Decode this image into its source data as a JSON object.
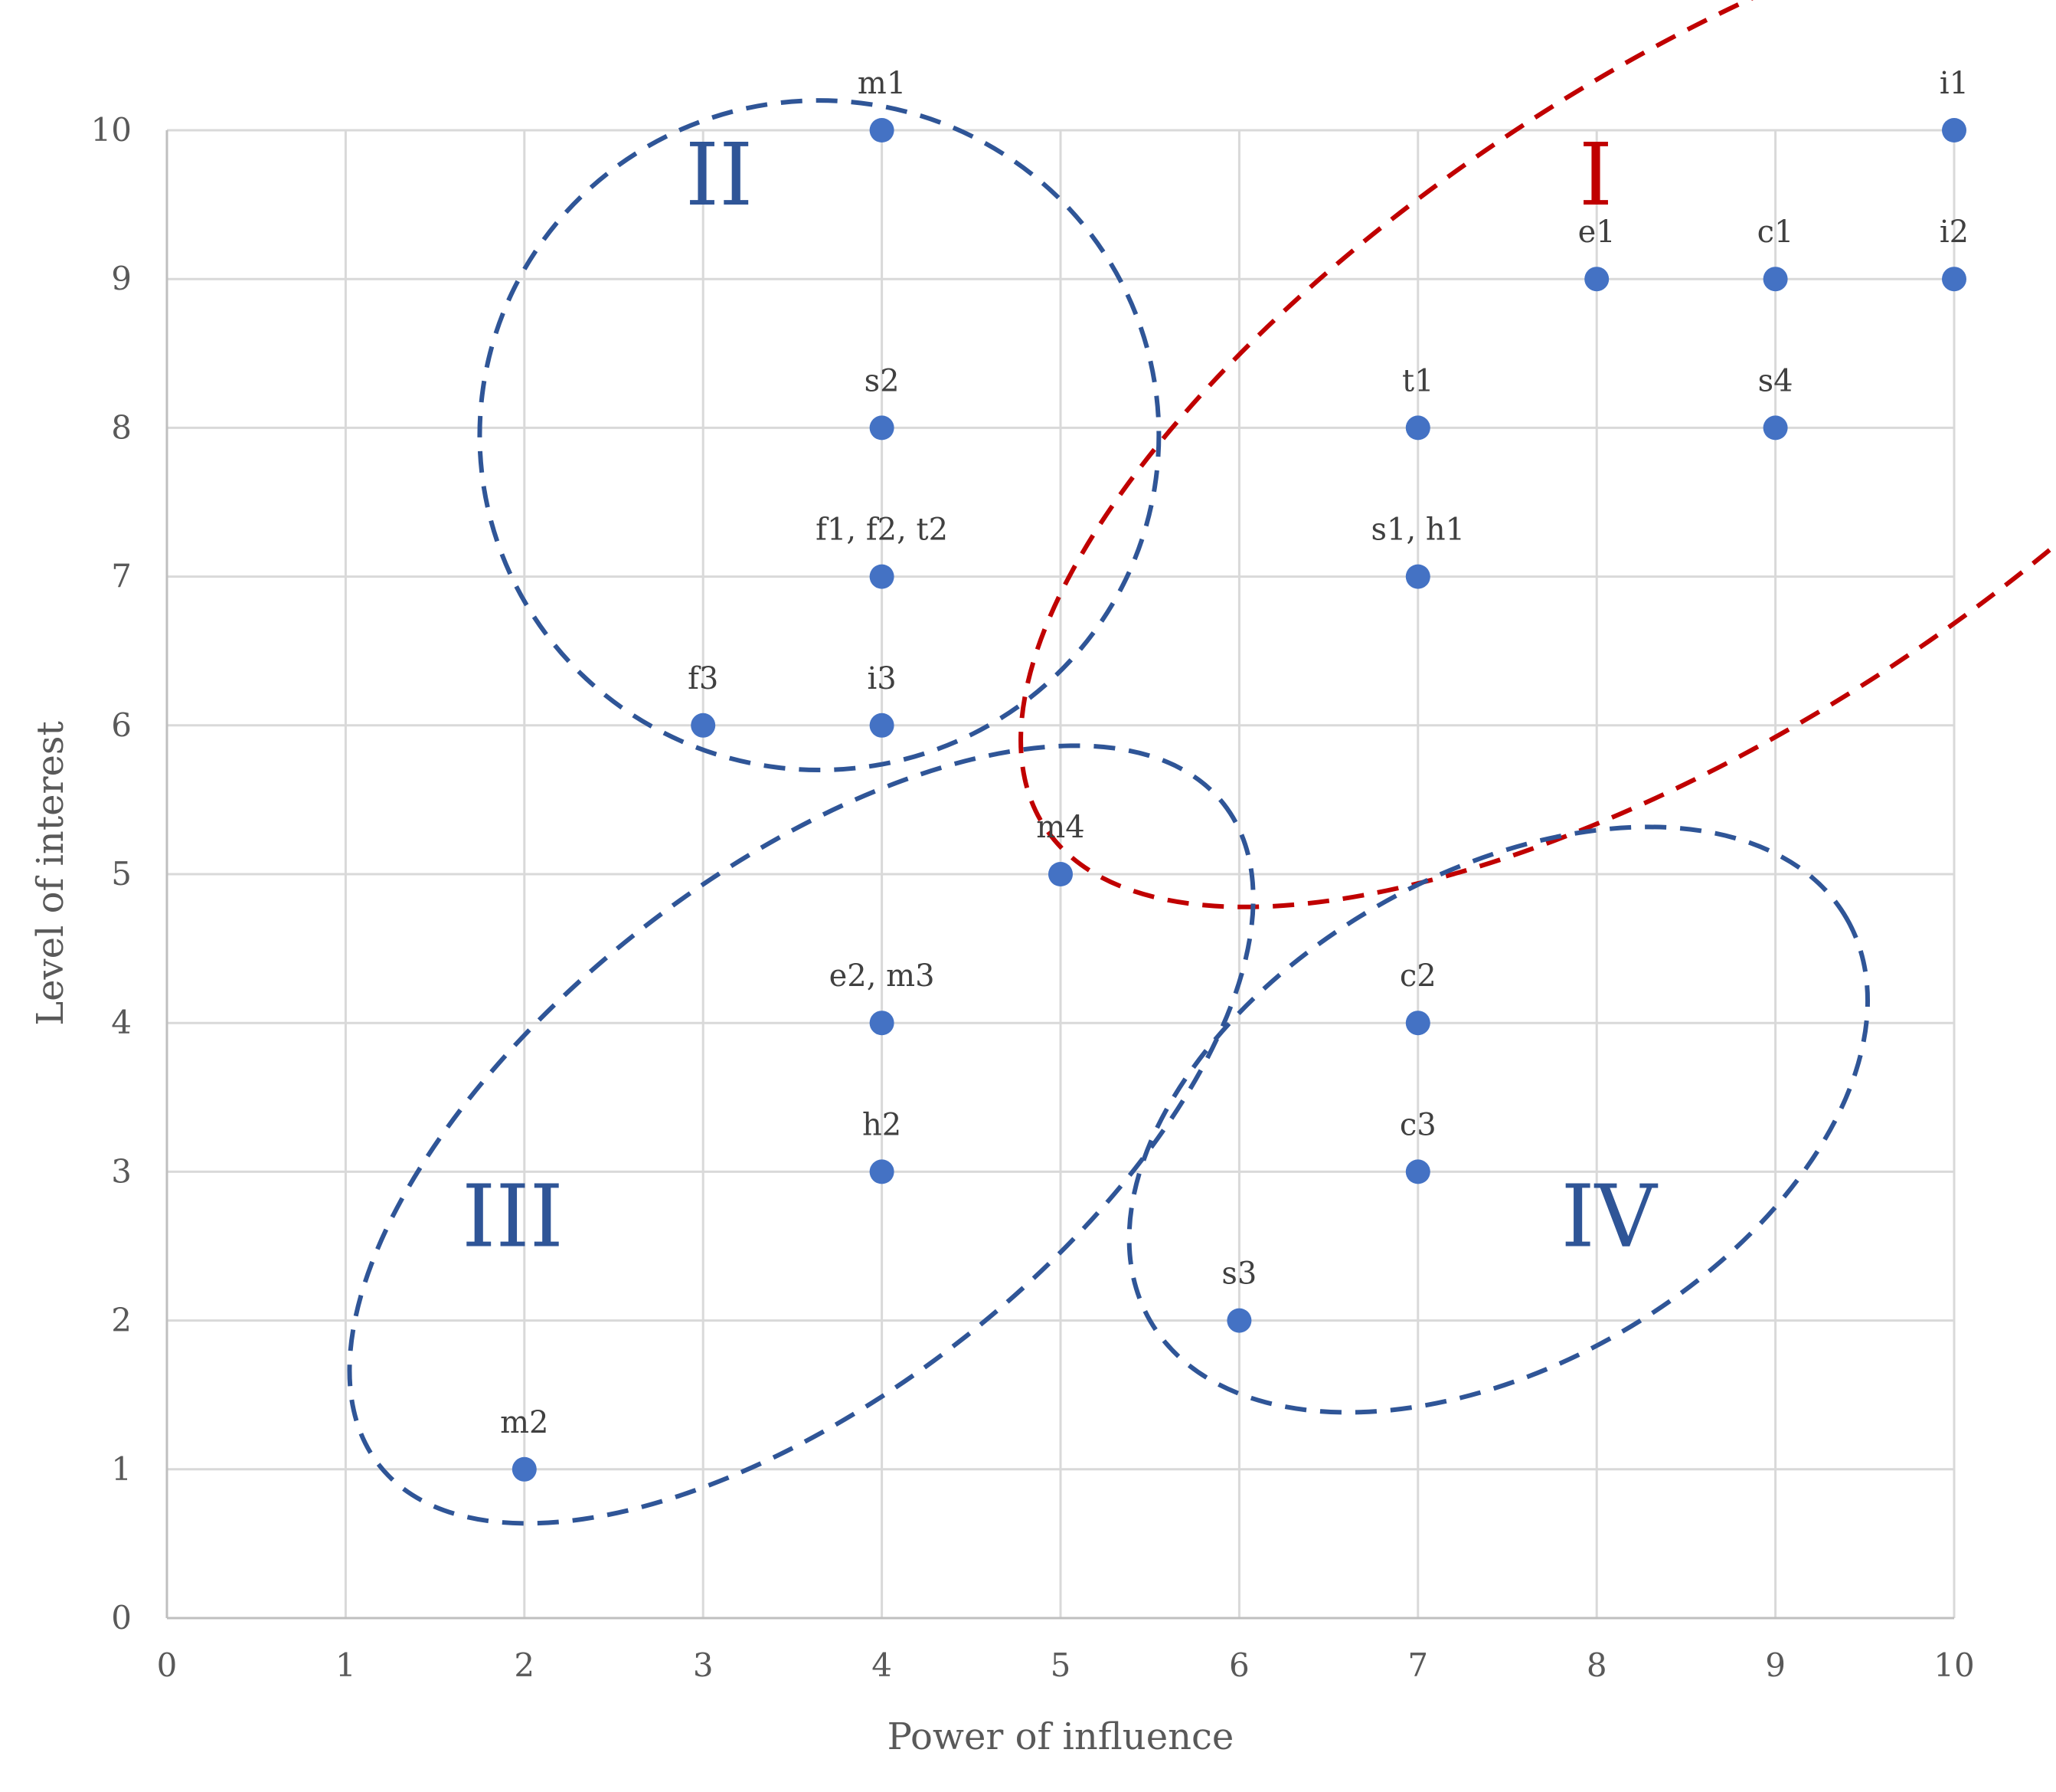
{
  "chart_data": {
    "type": "scatter",
    "xlabel": "Power of influence",
    "ylabel": "Level of interest",
    "xlim": [
      0,
      10
    ],
    "ylim": [
      0,
      10
    ],
    "xticks": [
      "0",
      "1",
      "2",
      "3",
      "4",
      "5",
      "6",
      "7",
      "8",
      "9",
      "10"
    ],
    "yticks": [
      "0",
      "1",
      "2",
      "3",
      "4",
      "5",
      "6",
      "7",
      "8",
      "9",
      "10"
    ],
    "grid": true,
    "point_color": "#4472c4",
    "points": [
      {
        "label": "m1",
        "x": 4,
        "y": 10
      },
      {
        "label": "s2",
        "x": 4,
        "y": 8
      },
      {
        "label": "f1, f2, t2",
        "x": 4,
        "y": 7
      },
      {
        "label": "f3",
        "x": 3,
        "y": 6
      },
      {
        "label": "i3",
        "x": 4,
        "y": 6
      },
      {
        "label": "i1",
        "x": 10,
        "y": 10
      },
      {
        "label": "e1",
        "x": 8,
        "y": 9
      },
      {
        "label": "c1",
        "x": 9,
        "y": 9
      },
      {
        "label": "i2",
        "x": 10,
        "y": 9
      },
      {
        "label": "t1",
        "x": 7,
        "y": 8
      },
      {
        "label": "s4",
        "x": 9,
        "y": 8
      },
      {
        "label": "s1, h1",
        "x": 7,
        "y": 7
      },
      {
        "label": "m4",
        "x": 5,
        "y": 5
      },
      {
        "label": "e2, m3",
        "x": 4,
        "y": 4
      },
      {
        "label": "h2",
        "x": 4,
        "y": 3
      },
      {
        "label": "m2",
        "x": 2,
        "y": 1
      },
      {
        "label": "c2",
        "x": 7,
        "y": 4
      },
      {
        "label": "c3",
        "x": 7,
        "y": 3
      },
      {
        "label": "s3",
        "x": 6,
        "y": 2
      }
    ],
    "groups": [
      {
        "label": "I",
        "color": "#c00000",
        "center": [
          8.6,
          8.2
        ],
        "radius": [
          4.4,
          2.2
        ],
        "rotation": 33,
        "label_at": [
          7.9,
          9.5
        ]
      },
      {
        "label": "II",
        "color": "#2f5597",
        "center": [
          3.65,
          7.95
        ],
        "radius": [
          1.9,
          2.25
        ],
        "rotation": 0,
        "label_at": [
          2.9,
          9.5
        ]
      },
      {
        "label": "III",
        "color": "#2f5597",
        "center": [
          3.55,
          3.25
        ],
        "radius": [
          3.0,
          1.75
        ],
        "rotation": 38,
        "label_at": [
          1.65,
          2.5
        ]
      },
      {
        "label": "IV",
        "color": "#2f5597",
        "center": [
          7.45,
          3.35
        ],
        "radius": [
          2.25,
          1.65
        ],
        "rotation": 30,
        "label_at": [
          7.8,
          2.5
        ]
      }
    ]
  }
}
